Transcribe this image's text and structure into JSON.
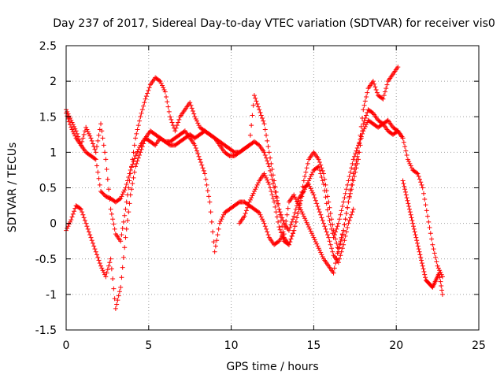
{
  "chart_data": {
    "type": "scatter",
    "title": "Day 237 of 2017, Sidereal Day-to-day VTEC variation (SDTVAR) for receiver vis0",
    "xlabel": "GPS time / hours",
    "ylabel": "SDTVAR / TECUs",
    "xlim": [
      0,
      25
    ],
    "ylim": [
      -1.5,
      2.5
    ],
    "xticks": [
      "0",
      "5",
      "10",
      "15",
      "20",
      "25"
    ],
    "yticks": [
      "-1.5",
      "-1",
      "-0.5",
      "0",
      "0.5",
      "1",
      "1.5",
      "2",
      "2.5"
    ],
    "grid": true,
    "marker": "plus",
    "color": "#ff0000",
    "series": [
      {
        "x": [
          0,
          0.3,
          0.6,
          0.9,
          1.2,
          1.5,
          1.8,
          2.1,
          2.4,
          2.7,
          3.0,
          3.3,
          3.6,
          3.9,
          4.2,
          4.5,
          4.8,
          5.1,
          5.4,
          5.7,
          6.0,
          6.3,
          6.6,
          6.9,
          7.2,
          7.5,
          7.8,
          8.1,
          8.4,
          8.7,
          9.0,
          9.3,
          9.6,
          9.9,
          10.2,
          10.5,
          10.8,
          11.1,
          11.4,
          11.7,
          12.0,
          12.3,
          12.6,
          12.9,
          13.2,
          13.5,
          13.8,
          14.1,
          14.4,
          14.7,
          15.0,
          15.3,
          15.6,
          15.9,
          16.2,
          16.5,
          16.8,
          17.1,
          17.4,
          17.7,
          18.0,
          18.3,
          18.6,
          18.9,
          19.2,
          19.5,
          19.8,
          20.1,
          20.4,
          20.7,
          21.0,
          21.3,
          21.6,
          21.9,
          22.2,
          22.5,
          22.8
        ],
        "y": [
          1.55,
          1.35,
          1.2,
          1.1,
          1.0,
          0.95,
          0.9,
          0.45,
          0.38,
          0.35,
          0.3,
          0.35,
          0.5,
          0.75,
          0.95,
          1.1,
          1.2,
          1.15,
          1.1,
          1.2,
          1.15,
          1.1,
          1.1,
          1.15,
          1.2,
          1.25,
          1.2,
          1.25,
          1.3,
          1.25,
          1.2,
          1.1,
          1.0,
          0.95,
          0.95,
          1.0,
          1.05,
          1.1,
          1.15,
          1.1,
          1.0,
          0.8,
          0.5,
          0.2,
          0.0,
          -0.1,
          0.1,
          0.35,
          0.45,
          0.6,
          0.75,
          0.8,
          0.55,
          0.1,
          -0.2,
          0.0,
          0.3,
          0.6,
          0.9,
          1.1,
          1.3,
          1.45,
          1.4,
          1.35,
          1.4,
          1.45,
          1.35,
          1.3,
          1.2,
          0.9,
          0.75,
          0.7,
          0.5,
          0.1,
          -0.3,
          -0.6,
          -0.75
        ]
      },
      {
        "x": [
          0,
          0.3,
          0.6,
          0.9,
          1.2,
          1.5,
          1.8,
          2.1,
          2.4,
          2.7,
          3.0,
          3.3,
          3.6,
          3.9,
          4.2,
          4.5,
          4.8,
          5.1,
          5.4,
          5.7,
          6.0,
          6.3,
          6.6,
          6.9,
          7.2,
          7.5,
          7.8,
          8.1,
          8.4,
          8.7,
          9.0,
          9.3,
          9.6,
          9.9,
          10.2,
          10.5,
          10.8,
          11.1,
          11.4,
          11.7,
          12.0,
          12.3,
          12.6,
          12.9,
          13.2,
          13.5,
          13.8,
          14.1,
          14.4,
          14.7,
          15.0,
          15.3,
          15.6,
          15.9,
          16.2,
          16.5,
          16.8,
          17.1,
          17.4,
          17.7,
          18.0,
          18.3,
          18.6,
          18.9,
          19.2,
          19.5,
          19.8,
          20.1,
          20.4
        ],
        "y": [
          -0.1,
          0.05,
          0.25,
          0.2,
          0.0,
          -0.2,
          -0.4,
          -0.6,
          -0.75,
          -0.5,
          -1.2,
          -0.9,
          -0.2,
          0.4,
          0.8,
          1.0,
          1.2,
          1.3,
          1.25,
          1.2,
          1.15,
          1.15,
          1.2,
          1.25,
          1.3,
          1.2,
          1.1,
          0.9,
          0.7,
          0.3,
          -0.4,
          0.0,
          0.15,
          0.2,
          0.25,
          0.3,
          0.3,
          0.25,
          0.2,
          0.15,
          0.0,
          -0.2,
          -0.3,
          -0.25,
          -0.15,
          0.3,
          0.4,
          0.25,
          0.1,
          -0.05,
          -0.2,
          -0.35,
          -0.5,
          -0.6,
          -0.7,
          -0.35,
          -0.1,
          0.3,
          0.6,
          0.9,
          1.4,
          1.6,
          1.55,
          1.45,
          1.4,
          1.3,
          1.25,
          1.3,
          1.2
        ]
      },
      {
        "x": [
          0,
          0.3,
          0.6,
          0.9,
          1.2,
          1.5,
          1.8,
          2.1,
          2.4,
          2.7,
          3.0,
          3.3,
          3.6,
          3.9,
          4.2,
          4.5,
          4.8,
          5.1,
          5.4,
          5.7,
          6.0,
          6.3,
          6.6,
          6.9,
          7.2,
          7.5,
          7.8,
          8.1,
          8.4,
          8.7,
          9.0,
          9.3,
          9.6,
          9.9,
          10.2,
          10.5,
          10.8,
          11.1,
          11.4,
          11.7,
          12.0,
          12.3,
          12.6,
          12.9,
          13.2,
          13.5,
          13.8,
          14.1,
          14.4,
          14.7,
          15.0,
          15.3,
          15.6,
          15.9,
          16.2,
          16.5,
          16.8,
          17.1,
          17.4,
          17.7,
          18.0,
          18.3,
          18.6,
          18.9,
          19.2,
          19.5,
          19.8,
          20.1
        ],
        "y": [
          1.6,
          1.45,
          1.3,
          1.1,
          1.35,
          1.2,
          1.0,
          1.4,
          0.9,
          0.2,
          -0.15,
          -0.25,
          0.2,
          0.7,
          1.2,
          1.5,
          1.75,
          1.95,
          2.05,
          2.0,
          1.85,
          1.5,
          1.3,
          1.5,
          1.6,
          1.7,
          1.5,
          1.35,
          1.3,
          1.25,
          1.2,
          1.15,
          1.1,
          1.05,
          1.0,
          1.0,
          1.05,
          1.1,
          1.8,
          1.6,
          1.4,
          1.0,
          0.6,
          0.2,
          -0.2,
          -0.3,
          -0.1,
          0.2,
          0.6,
          0.9,
          1.0,
          0.9,
          0.7,
          0.3,
          -0.1,
          -0.4,
          -0.1,
          0.3,
          0.7,
          1.0,
          1.6,
          1.9,
          2.0,
          1.8,
          1.75,
          2.0,
          2.1,
          2.2
        ]
      },
      {
        "x": [
          10.5,
          10.8,
          11.1,
          11.4,
          11.7,
          12.0,
          12.3,
          12.6,
          12.9,
          13.2,
          13.5,
          13.8,
          14.1,
          14.4,
          14.7,
          15.0,
          15.3,
          15.6,
          15.9,
          16.2,
          16.5,
          16.8,
          17.1,
          17.4
        ],
        "y": [
          0.0,
          0.1,
          0.3,
          0.45,
          0.6,
          0.7,
          0.55,
          0.3,
          -0.05,
          -0.25,
          -0.3,
          -0.1,
          0.2,
          0.5,
          0.55,
          0.4,
          0.2,
          0.0,
          -0.2,
          -0.45,
          -0.55,
          -0.3,
          0.0,
          0.2
        ]
      },
      {
        "x": [
          20.4,
          20.6,
          20.8,
          21.0,
          21.2,
          21.4,
          21.6,
          21.8,
          22.0,
          22.2,
          22.4,
          22.6,
          22.8
        ],
        "y": [
          0.6,
          0.4,
          0.2,
          0.0,
          -0.2,
          -0.4,
          -0.6,
          -0.8,
          -0.85,
          -0.9,
          -0.8,
          -0.7,
          -1.0
        ]
      }
    ]
  }
}
